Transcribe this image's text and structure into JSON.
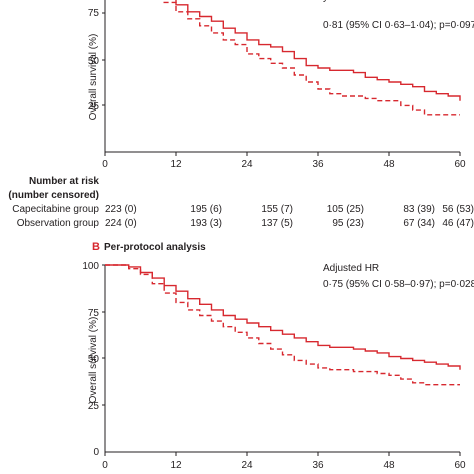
{
  "chart_data": [
    {
      "type": "line",
      "panel": "A",
      "title": "",
      "xlabel": "",
      "ylabel": "Overall survival (%)",
      "xlim": [
        0,
        60
      ],
      "ylim": [
        0,
        100
      ],
      "xticks": [
        "0",
        "12",
        "24",
        "36",
        "48",
        "60"
      ],
      "yticks": [
        "75",
        "50",
        "25"
      ],
      "annotation": "0·81 (95% CI 0·63–1·04); p=0·097",
      "color": "#d7282f",
      "series": [
        {
          "name": "",
          "style": "solid",
          "x": [
            0,
            2,
            4,
            6,
            8,
            10,
            12,
            14,
            16,
            18,
            20,
            22,
            24,
            26,
            28,
            30,
            32,
            34,
            36,
            38,
            40,
            42,
            44,
            46,
            48,
            50,
            52,
            54,
            56,
            58,
            60
          ],
          "y": [
            100,
            99,
            98,
            95,
            92,
            87,
            83,
            80,
            78,
            76,
            73,
            71,
            68,
            66,
            65,
            63,
            60,
            57,
            56,
            55,
            55,
            54,
            52,
            51,
            50,
            49,
            48,
            46,
            45,
            44,
            42
          ]
        },
        {
          "name": "",
          "style": "dashed",
          "x": [
            0,
            2,
            4,
            6,
            8,
            10,
            12,
            14,
            16,
            18,
            20,
            22,
            24,
            26,
            28,
            30,
            32,
            34,
            36,
            38,
            40,
            42,
            44,
            46,
            48,
            50,
            52,
            54,
            56,
            58,
            60
          ],
          "y": [
            100,
            99,
            97,
            93,
            89,
            84,
            80,
            77,
            74,
            71,
            68,
            66,
            62,
            60,
            58,
            56,
            53,
            50,
            47,
            45,
            44,
            44,
            43,
            42,
            42,
            40,
            38,
            36,
            36,
            36,
            36
          ]
        }
      ],
      "risk_table": {
        "title_line1": "Number at risk",
        "title_line2": "(number censored)",
        "rows": [
          {
            "label": "Capecitabine group",
            "values": [
              "223 (0)",
              "195 (6)",
              "155 (7)",
              "105 (25)",
              "83 (39)",
              "56 (53)"
            ]
          },
          {
            "label": "Observation group",
            "values": [
              "224 (0)",
              "193 (3)",
              "137 (5)",
              "95 (23)",
              "67 (34)",
              "46 (47)"
            ]
          }
        ]
      }
    },
    {
      "type": "line",
      "panel": "B",
      "title": "Per-protocol analysis",
      "xlabel": "",
      "ylabel": "Overall survival (%)",
      "xlim": [
        0,
        60
      ],
      "ylim": [
        0,
        100
      ],
      "xticks": [
        "0",
        "12",
        "24",
        "36",
        "48",
        "60"
      ],
      "yticks": [
        "100",
        "75",
        "50",
        "25",
        "0"
      ],
      "annotation_title": "Adjusted HR",
      "annotation": "0·75 (95% CI 0·58–0·97); p=0·028",
      "color": "#d7282f",
      "series": [
        {
          "name": "",
          "style": "solid",
          "x": [
            0,
            2,
            4,
            6,
            8,
            10,
            12,
            14,
            16,
            18,
            20,
            22,
            24,
            26,
            28,
            30,
            32,
            34,
            36,
            38,
            40,
            42,
            44,
            46,
            48,
            50,
            52,
            54,
            56,
            58,
            60
          ],
          "y": [
            100,
            100,
            99,
            96,
            93,
            89,
            86,
            82,
            79,
            76,
            73,
            71,
            69,
            67,
            65,
            63,
            61,
            59,
            57,
            56,
            56,
            55,
            54,
            53,
            51,
            50,
            49,
            48,
            47,
            46,
            44
          ]
        },
        {
          "name": "",
          "style": "dashed",
          "x": [
            0,
            2,
            4,
            6,
            8,
            10,
            12,
            14,
            16,
            18,
            20,
            22,
            24,
            26,
            28,
            30,
            32,
            34,
            36,
            38,
            40,
            42,
            44,
            46,
            48,
            50,
            52,
            54,
            56,
            58,
            60
          ],
          "y": [
            100,
            100,
            98,
            95,
            90,
            85,
            80,
            76,
            73,
            70,
            67,
            64,
            61,
            58,
            55,
            52,
            49,
            47,
            45,
            44,
            44,
            43,
            43,
            42,
            41,
            39,
            37,
            36,
            36,
            36,
            36
          ]
        }
      ]
    }
  ]
}
